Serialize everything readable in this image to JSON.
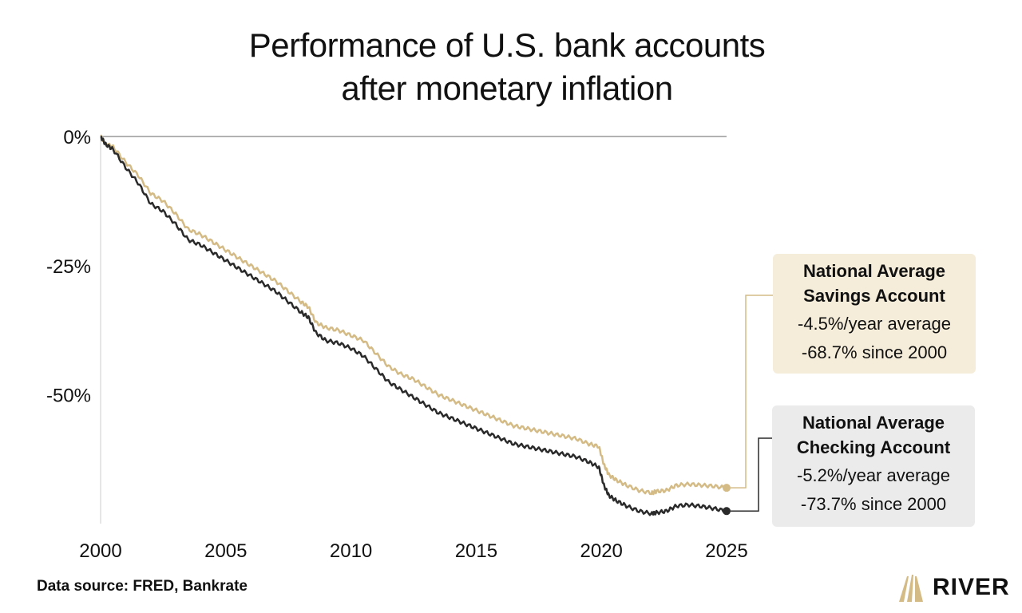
{
  "title_line1": "Performance of U.S. bank accounts",
  "title_line2": "after monetary inflation",
  "source": "Data source: FRED, Bankrate",
  "logo_text": "RIVER",
  "colors": {
    "savings": "#d4bb86",
    "checking": "#2a2a2a",
    "savings_box": "#f5ecd9",
    "checking_box": "#ebebeb",
    "axis": "#999999",
    "logo_gold": "#d4bb86"
  },
  "callouts": {
    "savings": {
      "name_line1": "National Average",
      "name_line2": "Savings Account",
      "stat1": "-4.5%/year average",
      "stat2": "-68.7% since 2000"
    },
    "checking": {
      "name_line1": "National Average",
      "name_line2": "Checking Account",
      "stat1": "-5.2%/year average",
      "stat2": "-73.7% since 2000"
    }
  },
  "chart_data": {
    "type": "line",
    "xlim": [
      2000,
      2025
    ],
    "ylim": [
      -74,
      0
    ],
    "x_ticks": [
      2000,
      2005,
      2010,
      2015,
      2020,
      2025
    ],
    "x_tick_labels": [
      "2000",
      "2005",
      "2010",
      "2015",
      "2020",
      "2025"
    ],
    "y_ticks": [
      0,
      -25,
      -50
    ],
    "y_tick_labels": [
      "0%",
      "-25%",
      "-50%"
    ],
    "grid": false,
    "series": [
      {
        "name": "National Average Savings Account",
        "color": "#d4bb86",
        "x": [
          2000,
          2000.2,
          2000.5,
          2001,
          2001.5,
          2002,
          2002.5,
          2003,
          2003.5,
          2004,
          2004.5,
          2005,
          2005.5,
          2006,
          2006.5,
          2007,
          2007.5,
          2008,
          2008.3,
          2008.6,
          2009,
          2009.5,
          2010,
          2010.5,
          2011,
          2011.5,
          2012,
          2012.5,
          2013,
          2013.5,
          2014,
          2014.5,
          2015,
          2015.5,
          2016,
          2016.5,
          2017,
          2017.5,
          2018,
          2018.5,
          2019,
          2019.5,
          2019.9,
          2020.1,
          2020.3,
          2020.6,
          2021,
          2021.5,
          2022,
          2022.2,
          2022.6,
          2023,
          2023.5,
          2024,
          2024.5,
          2025
        ],
        "values": [
          0,
          -1.5,
          -2,
          -5,
          -7.5,
          -11,
          -12.5,
          -15,
          -18,
          -19,
          -20.5,
          -22,
          -23.5,
          -25,
          -26.5,
          -28,
          -30,
          -32,
          -33,
          -36,
          -37,
          -37.5,
          -38.5,
          -39.5,
          -42,
          -44.5,
          -46,
          -47,
          -48.5,
          -50,
          -51,
          -52,
          -53,
          -54,
          -55,
          -56,
          -56.5,
          -57,
          -57.5,
          -58,
          -58.5,
          -59.5,
          -60,
          -63.5,
          -65.5,
          -66.5,
          -67.5,
          -68.5,
          -69,
          -68.7,
          -68.5,
          -67.5,
          -67.3,
          -67.5,
          -67.7,
          -68
        ]
      },
      {
        "name": "National Average Checking Account",
        "color": "#2a2a2a",
        "x": [
          2000,
          2000.2,
          2000.5,
          2001,
          2001.5,
          2002,
          2002.5,
          2003,
          2003.5,
          2004,
          2004.5,
          2005,
          2005.5,
          2006,
          2006.5,
          2007,
          2007.5,
          2008,
          2008.3,
          2008.6,
          2009,
          2009.5,
          2010,
          2010.5,
          2011,
          2011.5,
          2012,
          2012.5,
          2013,
          2013.5,
          2014,
          2014.5,
          2015,
          2015.5,
          2016,
          2016.5,
          2017,
          2017.5,
          2018,
          2018.5,
          2019,
          2019.5,
          2019.9,
          2020.1,
          2020.3,
          2020.6,
          2021,
          2021.5,
          2022,
          2022.2,
          2022.6,
          2023,
          2023.5,
          2024,
          2024.5,
          2025
        ],
        "values": [
          0,
          -1.5,
          -2.5,
          -6,
          -9,
          -13,
          -14.5,
          -17,
          -20,
          -21,
          -22.5,
          -24,
          -25.5,
          -27,
          -28.5,
          -30,
          -32,
          -34,
          -35,
          -38,
          -39.5,
          -40,
          -41,
          -42.5,
          -45,
          -47.5,
          -49,
          -50.5,
          -52,
          -53.5,
          -54.5,
          -55.5,
          -56.5,
          -57.5,
          -58.5,
          -59.5,
          -60,
          -60.5,
          -61,
          -61.5,
          -62,
          -63,
          -64,
          -67.5,
          -69.5,
          -70.5,
          -71.5,
          -72.5,
          -73,
          -72.8,
          -72.5,
          -71.5,
          -71.3,
          -71.6,
          -72,
          -72.5
        ]
      }
    ]
  }
}
